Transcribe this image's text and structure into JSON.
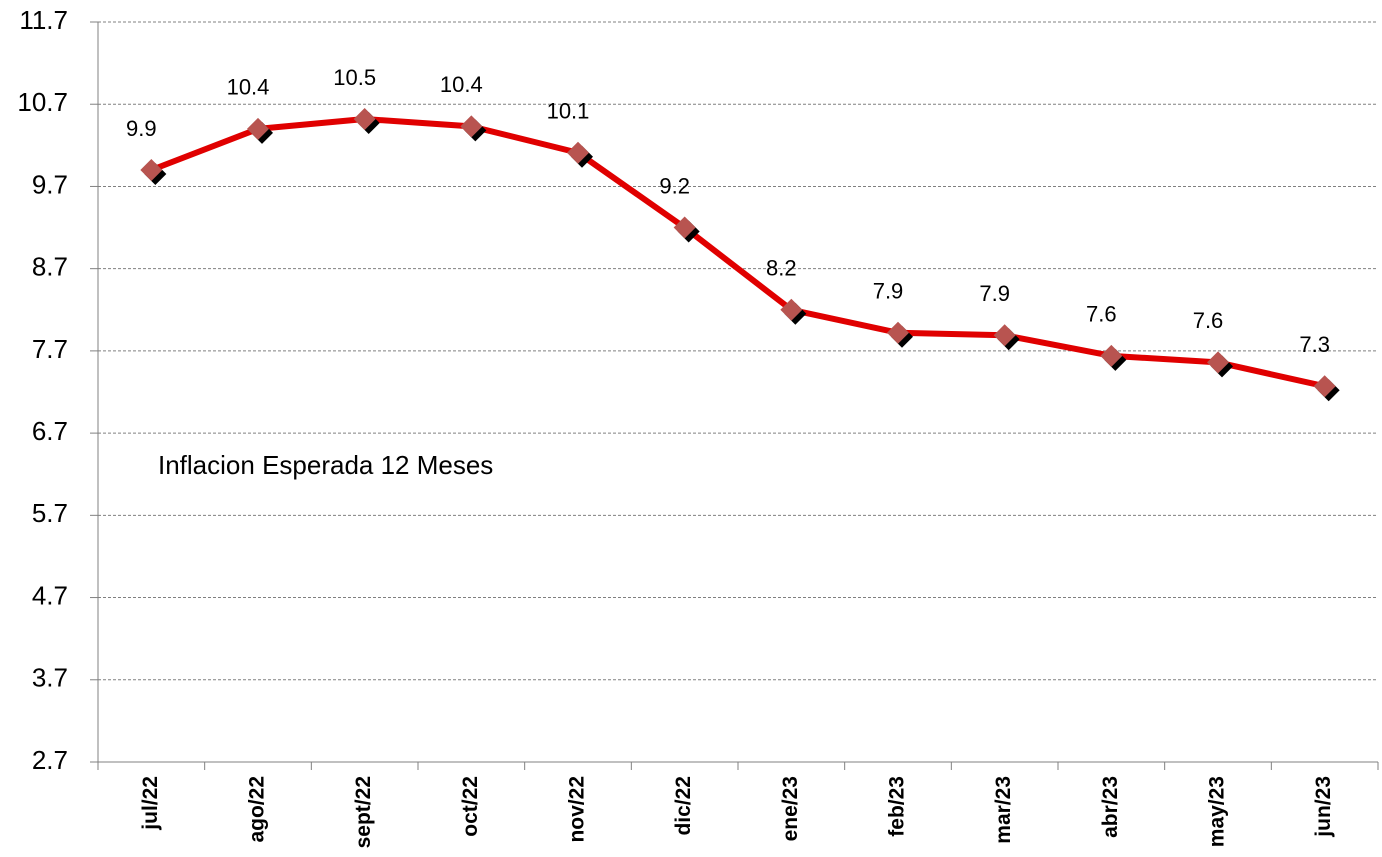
{
  "chart_data": {
    "type": "line",
    "categories": [
      "jul/22",
      "ago/22",
      "sept/22",
      "oct/22",
      "nov/22",
      "dic/22",
      "ene/23",
      "feb/23",
      "mar/23",
      "abr/23",
      "may/23",
      "jun/23"
    ],
    "series": [
      {
        "name": "Inflacion Esperada 12 Meses",
        "color": "#e00000",
        "marker_color": "#b85450",
        "values": [
          9.9,
          10.4,
          10.52,
          10.43,
          10.11,
          9.2,
          8.2,
          7.92,
          7.89,
          7.64,
          7.56,
          7.27
        ],
        "value_labels": [
          "9.9",
          "10.4",
          "10.5",
          "10.4",
          "10.1",
          "9.2",
          "8.2",
          "7.9",
          "7.9",
          "7.6",
          "7.6",
          "7.3"
        ]
      }
    ],
    "ylim": [
      2.7,
      11.7
    ],
    "yticks": [
      2.7,
      3.7,
      4.7,
      5.7,
      6.7,
      7.7,
      8.7,
      9.7,
      10.7,
      11.7
    ],
    "grid": true
  }
}
